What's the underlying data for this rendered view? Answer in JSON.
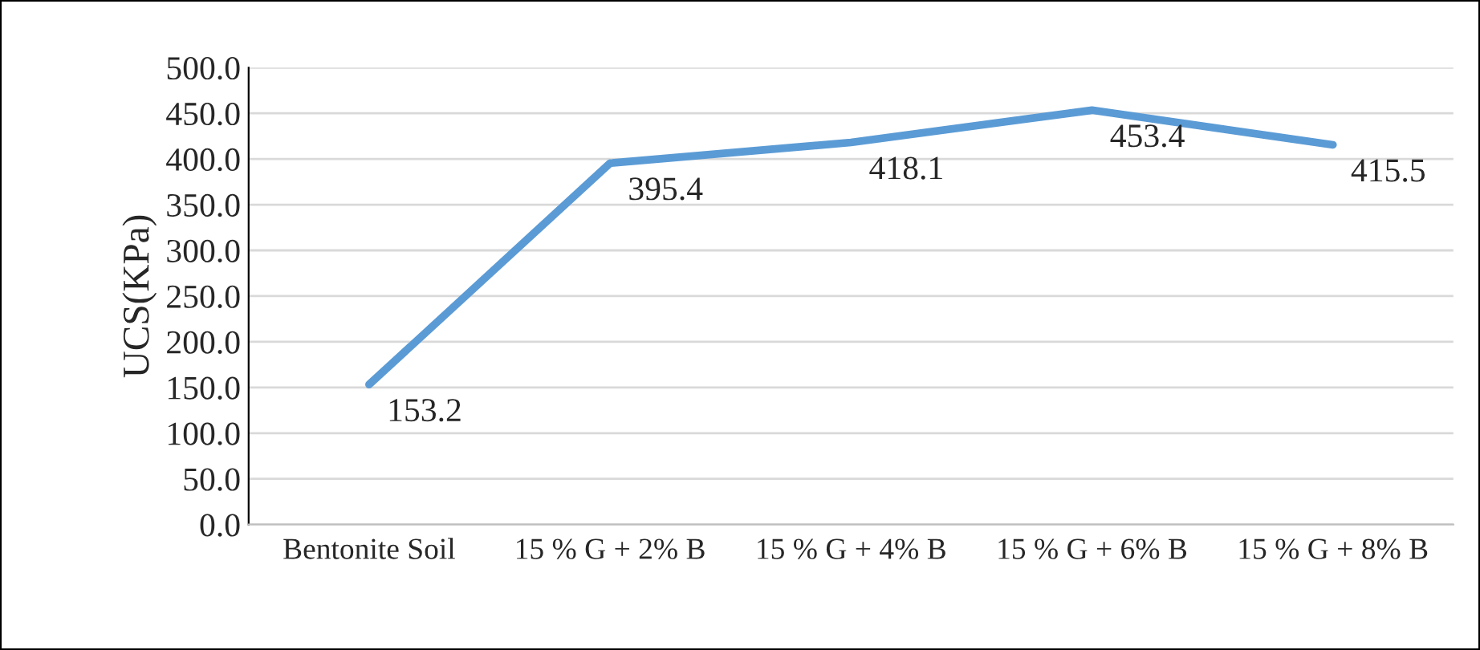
{
  "chart_data": {
    "type": "line",
    "ylabel": "UCS(KPa)",
    "categories": [
      "Bentonite Soil",
      "15 % G + 2% B",
      "15 % G + 4% B",
      "15 % G + 6% B",
      "15 % G + 8% B"
    ],
    "series": [
      {
        "color": "#5b9bd5",
        "values": [
          153.2,
          395.4,
          418.1,
          453.4,
          415.5
        ]
      }
    ],
    "ylim": [
      0,
      500
    ],
    "yticks": [
      {
        "value": 0,
        "label": "0.0"
      },
      {
        "value": 50,
        "label": "50.0"
      },
      {
        "value": 100,
        "label": "100.0"
      },
      {
        "value": 150,
        "label": "150.0"
      },
      {
        "value": 200,
        "label": "200.0"
      },
      {
        "value": 250,
        "label": "250.0"
      },
      {
        "value": 300,
        "label": "300.0"
      },
      {
        "value": 350,
        "label": "350.0"
      },
      {
        "value": 400,
        "label": "400.0"
      },
      {
        "value": 450,
        "label": "450.0"
      },
      {
        "value": 500,
        "label": "500.0"
      }
    ],
    "grid": "y",
    "data_labels": true,
    "marker": "none",
    "line_style": "solid"
  }
}
